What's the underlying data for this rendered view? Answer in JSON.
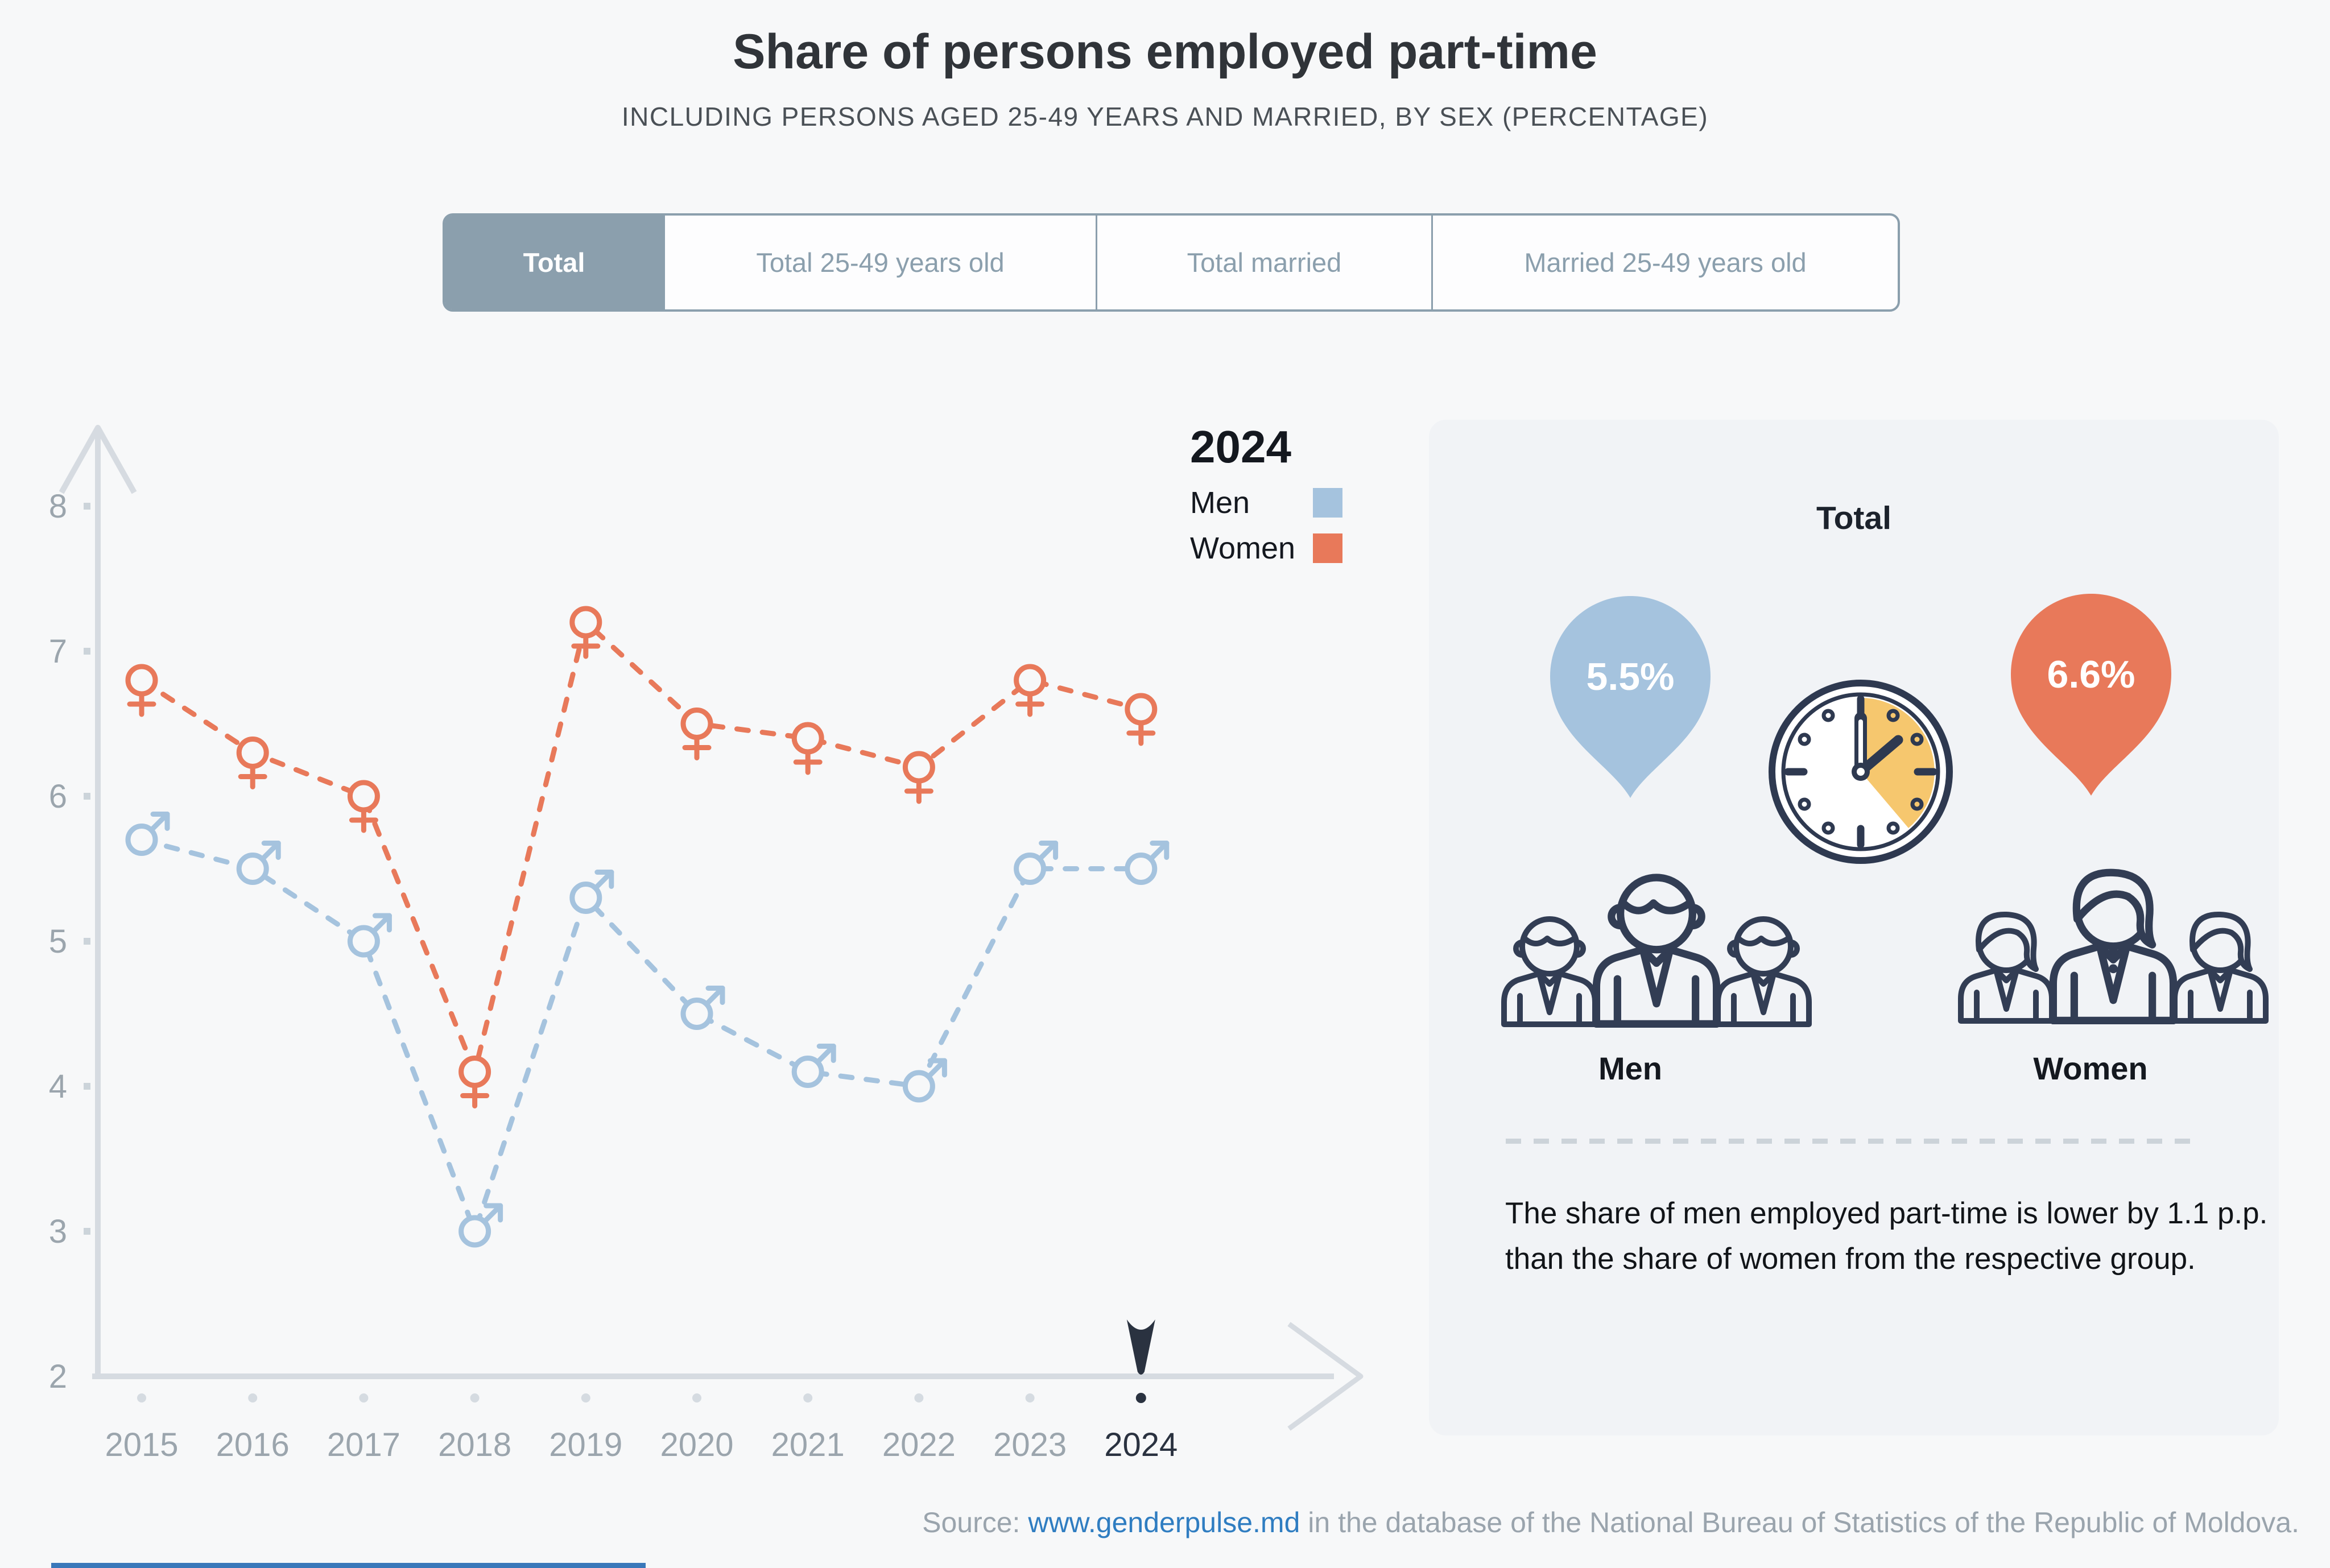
{
  "title": "Share of persons employed part-time",
  "subtitle": "INCLUDING PERSONS AGED 25-49 YEARS AND MARRIED, BY SEX (PERCENTAGE)",
  "tabs": [
    {
      "label": "Total",
      "active": true
    },
    {
      "label": "Total 25-49 years old",
      "active": false
    },
    {
      "label": "Total married",
      "active": false
    },
    {
      "label": "Married 25-49 years old",
      "active": false
    }
  ],
  "legend": {
    "year": "2024",
    "men_label": "Men",
    "women_label": "Women"
  },
  "chart_data": {
    "type": "line",
    "title": "Share of persons employed part-time",
    "x": [
      2015,
      2016,
      2017,
      2018,
      2019,
      2020,
      2021,
      2022,
      2023,
      2024
    ],
    "series": [
      {
        "name": "Men",
        "color": "#a5c3de",
        "marker": "male",
        "values": [
          5.7,
          5.5,
          5.0,
          3.0,
          5.3,
          4.5,
          4.1,
          4.0,
          5.5,
          5.5
        ]
      },
      {
        "name": "Women",
        "color": "#e8795a",
        "marker": "female",
        "values": [
          6.8,
          6.3,
          6.0,
          4.1,
          7.2,
          6.5,
          6.4,
          6.2,
          6.8,
          6.6
        ]
      }
    ],
    "ylim": [
      2,
      8
    ],
    "yticks": [
      2,
      3,
      4,
      5,
      6,
      7,
      8
    ],
    "xlabel": "",
    "ylabel": "",
    "grid": false,
    "line_style": "dashed",
    "legend_position": "top-right",
    "selected_year": 2024
  },
  "panel": {
    "heading": "Total",
    "men_value": "5.5%",
    "women_value": "6.6%",
    "men_label": "Men",
    "women_label": "Women",
    "note": "The share of men employed part-time is lower by 1.1 p.p. than the share of women from the respective group."
  },
  "source": {
    "prefix": "Source: ",
    "link": "www.genderpulse.md",
    "suffix": " in the database of the National Bureau of Statistics of the Republic of Moldova."
  },
  "colors": {
    "men": "#a5c3de",
    "women": "#e8795a",
    "navy": "#2e3950",
    "axis": "#d6dbe1",
    "tick_label": "#9ba5ad",
    "selected_label": "#2a3240",
    "tab": "#8b9fad",
    "yellow": "#f6c76e",
    "link": "#2f7dc1",
    "panel_bg": "#f1f3f6",
    "page_bg": "#f7f8f9"
  }
}
